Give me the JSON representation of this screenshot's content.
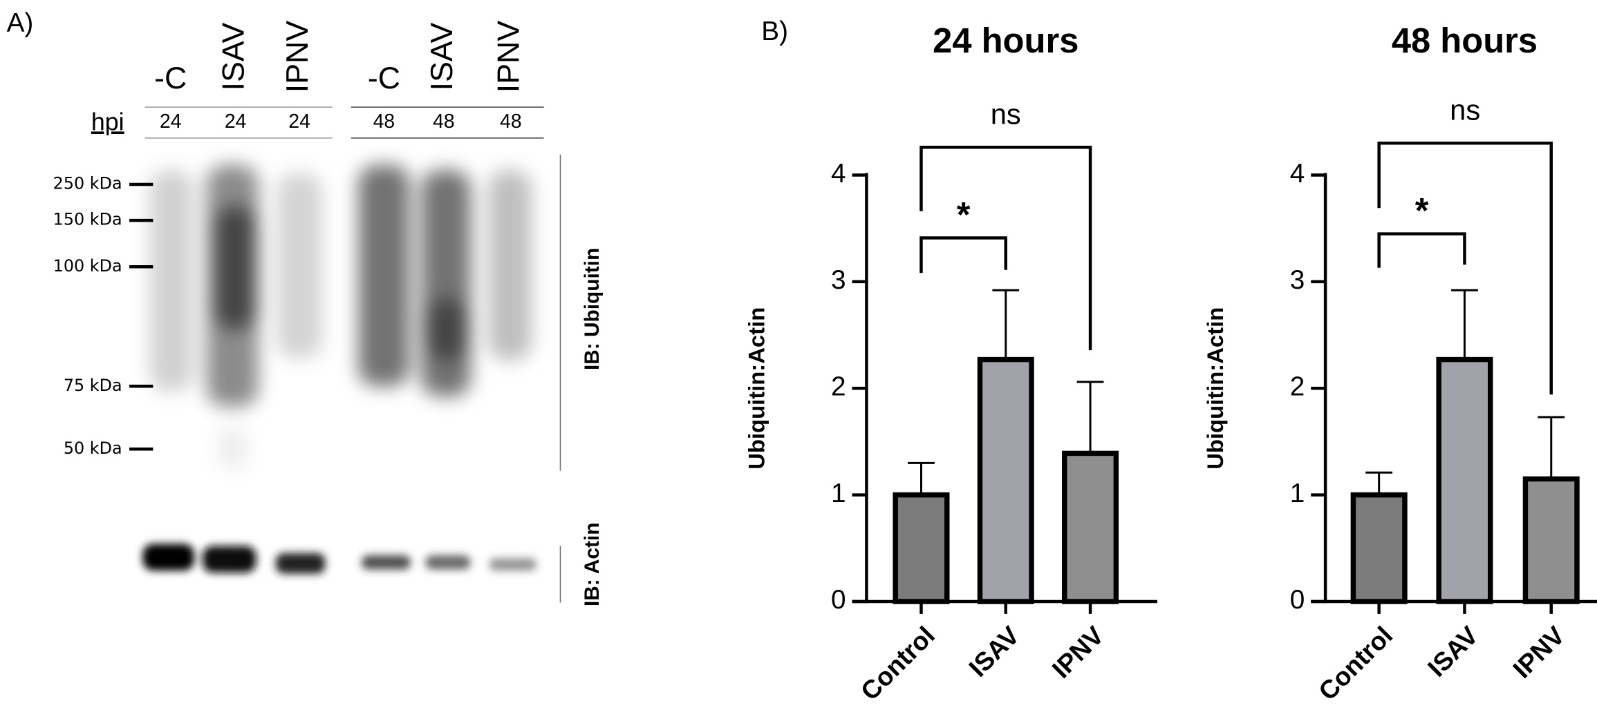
{
  "panels": [
    "A)",
    "B)"
  ],
  "blot": {
    "lanes": [
      "-C",
      "ISAV",
      "IPNV",
      "-C",
      "ISAV",
      "IPNV"
    ],
    "hpi_label": "hpi",
    "hpi": [
      24,
      24,
      24,
      48,
      48,
      48
    ],
    "markers": [
      "250 kDa",
      "150 kDa",
      "100 kDa",
      "75 kDa",
      "50 kDa"
    ],
    "probes": [
      "IB: Ubiquitin",
      "IB: Actin"
    ]
  },
  "chart_data": [
    {
      "type": "bar",
      "title": "24 hours",
      "y_label": "Ubiquitin:Actin",
      "categories": [
        "Control",
        "ISAV",
        "IPNV"
      ],
      "values": [
        1.0,
        2.27,
        1.39
      ],
      "errors": [
        0.3,
        0.65,
        0.67
      ],
      "colors": [
        "#7b7b7b",
        "#a2a2aa",
        "#8f8f8f"
      ],
      "ylim": [
        0,
        4
      ],
      "yticks": [
        0,
        1,
        2,
        3,
        4
      ],
      "annotations": [
        {
          "text": "ns"
        },
        {
          "text": "*"
        }
      ]
    },
    {
      "type": "bar",
      "title": "48 hours",
      "y_label": "Ubiquitin:Actin",
      "categories": [
        "Control",
        "ISAV",
        "IPNV"
      ],
      "values": [
        1.0,
        2.27,
        1.15
      ],
      "errors": [
        0.21,
        0.65,
        0.58
      ],
      "colors": [
        "#7b7b7b",
        "#a2a2aa",
        "#8f8f8f"
      ],
      "ylim": [
        0,
        4
      ],
      "yticks": [
        0,
        1,
        2,
        3,
        4
      ],
      "annotations": [
        {
          "text": "ns"
        },
        {
          "text": "*"
        }
      ]
    }
  ]
}
